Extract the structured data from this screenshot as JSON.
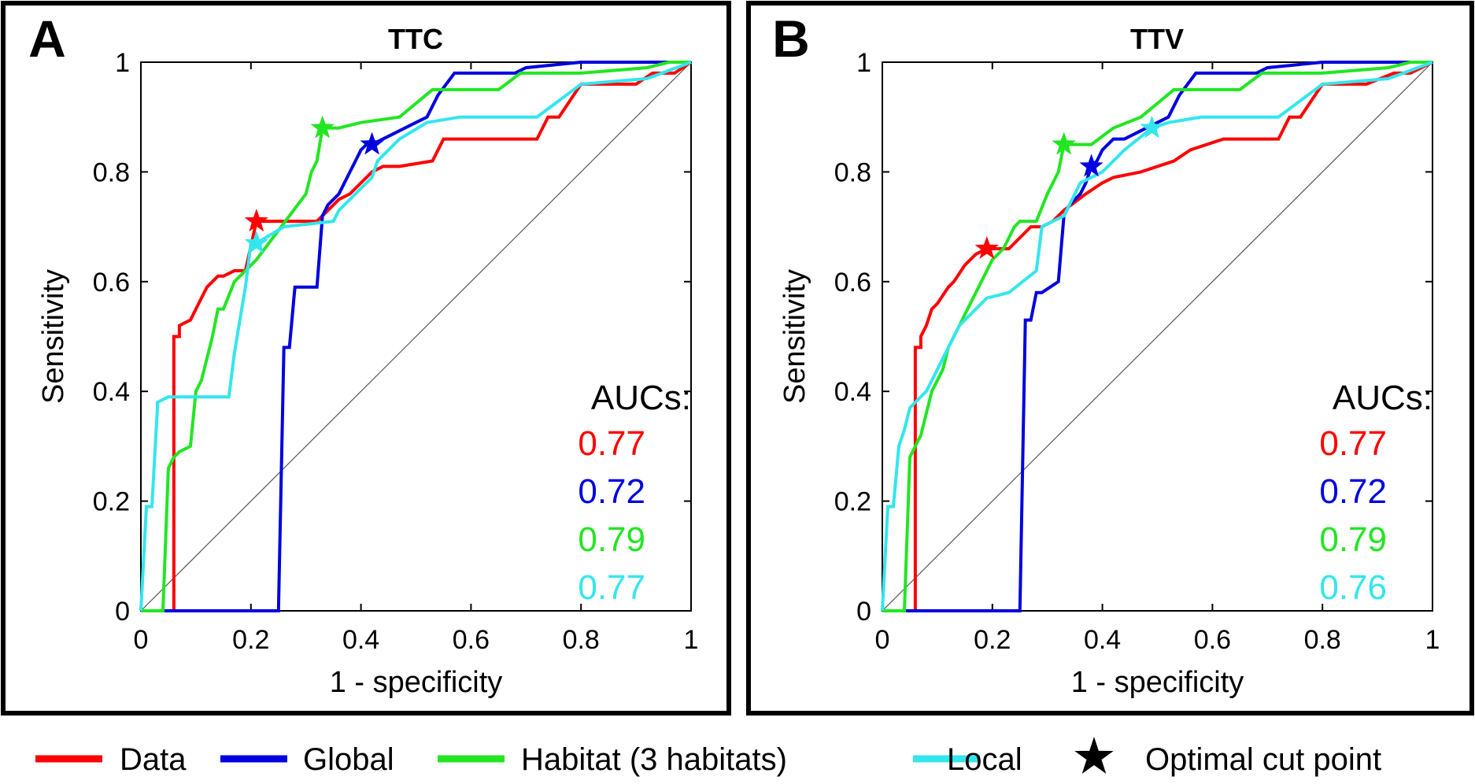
{
  "colors": {
    "data": "#ff0000",
    "global": "#0000e0",
    "habitat": "#22e622",
    "local": "#33e6ee",
    "diagonal": "#555555",
    "frame": "#000000"
  },
  "chart_data": [
    {
      "type": "line",
      "panel_label": "A",
      "title": "TTC",
      "xlabel": "1 - specificity",
      "ylabel": "Sensitivity",
      "xlim": [
        0,
        1
      ],
      "ylim": [
        0,
        1
      ],
      "xticks": [
        "0",
        "0.2",
        "0.4",
        "0.6",
        "0.8",
        "1"
      ],
      "yticks": [
        "0",
        "0.2",
        "0.4",
        "0.6",
        "0.8",
        "1"
      ],
      "auc_heading": "AUCs:",
      "series": [
        {
          "name": "Data",
          "key": "data",
          "auc": "0.77",
          "cut_point": [
            0.21,
            0.71
          ],
          "x": [
            0,
            0.06,
            0.06,
            0.07,
            0.07,
            0.09,
            0.1,
            0.11,
            0.12,
            0.13,
            0.14,
            0.15,
            0.17,
            0.19,
            0.21,
            0.25,
            0.32,
            0.34,
            0.36,
            0.38,
            0.4,
            0.42,
            0.44,
            0.47,
            0.53,
            0.55,
            0.6,
            0.68,
            0.72,
            0.74,
            0.76,
            0.8,
            0.84,
            0.9,
            0.93,
            0.97,
            1
          ],
          "y": [
            0,
            0,
            0.5,
            0.5,
            0.52,
            0.53,
            0.55,
            0.57,
            0.59,
            0.6,
            0.61,
            0.61,
            0.62,
            0.62,
            0.71,
            0.71,
            0.71,
            0.73,
            0.75,
            0.76,
            0.78,
            0.8,
            0.81,
            0.81,
            0.82,
            0.86,
            0.86,
            0.86,
            0.86,
            0.9,
            0.9,
            0.96,
            0.96,
            0.96,
            0.98,
            0.98,
            1
          ]
        },
        {
          "name": "Global",
          "key": "global",
          "auc": "0.72",
          "cut_point": [
            0.42,
            0.85
          ],
          "x": [
            0,
            0.25,
            0.26,
            0.27,
            0.28,
            0.29,
            0.32,
            0.33,
            0.34,
            0.36,
            0.37,
            0.38,
            0.39,
            0.4,
            0.41,
            0.42,
            0.44,
            0.48,
            0.52,
            0.54,
            0.57,
            0.68,
            0.7,
            0.8,
            0.94,
            1
          ],
          "y": [
            0,
            0,
            0.48,
            0.48,
            0.59,
            0.59,
            0.59,
            0.72,
            0.74,
            0.76,
            0.78,
            0.8,
            0.82,
            0.84,
            0.85,
            0.85,
            0.86,
            0.88,
            0.9,
            0.94,
            0.98,
            0.98,
            0.99,
            1,
            1,
            1
          ]
        },
        {
          "name": "Habitat (3 habitats)",
          "key": "habitat",
          "auc": "0.79",
          "cut_point": [
            0.33,
            0.88
          ],
          "x": [
            0,
            0.04,
            0.05,
            0.06,
            0.07,
            0.09,
            0.1,
            0.11,
            0.12,
            0.13,
            0.14,
            0.15,
            0.17,
            0.19,
            0.21,
            0.24,
            0.27,
            0.3,
            0.31,
            0.32,
            0.33,
            0.36,
            0.4,
            0.47,
            0.53,
            0.65,
            0.69,
            0.8,
            0.92,
            0.96,
            1
          ],
          "y": [
            0,
            0,
            0.26,
            0.28,
            0.29,
            0.3,
            0.4,
            0.42,
            0.46,
            0.5,
            0.55,
            0.55,
            0.6,
            0.62,
            0.64,
            0.68,
            0.72,
            0.76,
            0.8,
            0.82,
            0.88,
            0.88,
            0.89,
            0.9,
            0.95,
            0.95,
            0.98,
            0.98,
            0.99,
            1,
            1
          ]
        },
        {
          "name": "Local",
          "key": "local",
          "auc": "0.77",
          "cut_point": [
            0.21,
            0.67
          ],
          "x": [
            0,
            0.01,
            0.02,
            0.03,
            0.03,
            0.05,
            0.11,
            0.16,
            0.17,
            0.18,
            0.19,
            0.2,
            0.21,
            0.26,
            0.35,
            0.36,
            0.39,
            0.42,
            0.43,
            0.47,
            0.52,
            0.58,
            0.72,
            0.8,
            0.92,
            1
          ],
          "y": [
            0,
            0.19,
            0.19,
            0.37,
            0.38,
            0.39,
            0.39,
            0.39,
            0.47,
            0.53,
            0.59,
            0.67,
            0.67,
            0.7,
            0.71,
            0.73,
            0.76,
            0.79,
            0.82,
            0.86,
            0.89,
            0.9,
            0.9,
            0.96,
            0.97,
            1
          ]
        }
      ]
    },
    {
      "type": "line",
      "panel_label": "B",
      "title": "TTV",
      "xlabel": "1 - specificity",
      "ylabel": "Sensitivity",
      "xlim": [
        0,
        1
      ],
      "ylim": [
        0,
        1
      ],
      "xticks": [
        "0",
        "0.2",
        "0.4",
        "0.6",
        "0.8",
        "1"
      ],
      "yticks": [
        "0",
        "0.2",
        "0.4",
        "0.6",
        "0.8",
        "1"
      ],
      "auc_heading": "AUCs:",
      "series": [
        {
          "name": "Data",
          "key": "data",
          "auc": "0.77",
          "cut_point": [
            0.19,
            0.66
          ],
          "x": [
            0,
            0.06,
            0.06,
            0.07,
            0.07,
            0.08,
            0.09,
            0.1,
            0.12,
            0.13,
            0.15,
            0.17,
            0.19,
            0.23,
            0.25,
            0.27,
            0.29,
            0.31,
            0.33,
            0.37,
            0.4,
            0.42,
            0.47,
            0.53,
            0.56,
            0.62,
            0.68,
            0.72,
            0.74,
            0.76,
            0.8,
            0.88,
            0.93,
            0.96,
            1
          ],
          "y": [
            0,
            0,
            0.48,
            0.48,
            0.5,
            0.52,
            0.55,
            0.56,
            0.59,
            0.6,
            0.63,
            0.65,
            0.66,
            0.66,
            0.68,
            0.7,
            0.7,
            0.71,
            0.73,
            0.76,
            0.78,
            0.79,
            0.8,
            0.82,
            0.84,
            0.86,
            0.86,
            0.86,
            0.9,
            0.9,
            0.96,
            0.96,
            0.98,
            0.98,
            1
          ]
        },
        {
          "name": "Global",
          "key": "global",
          "auc": "0.72",
          "cut_point": [
            0.38,
            0.81
          ],
          "x": [
            0,
            0.25,
            0.26,
            0.27,
            0.28,
            0.29,
            0.32,
            0.33,
            0.34,
            0.36,
            0.37,
            0.38,
            0.39,
            0.4,
            0.42,
            0.44,
            0.48,
            0.52,
            0.54,
            0.57,
            0.68,
            0.7,
            0.8,
            0.94,
            1
          ],
          "y": [
            0,
            0,
            0.53,
            0.53,
            0.58,
            0.58,
            0.6,
            0.72,
            0.74,
            0.76,
            0.78,
            0.81,
            0.82,
            0.84,
            0.86,
            0.86,
            0.88,
            0.9,
            0.94,
            0.98,
            0.98,
            0.99,
            1,
            1,
            1
          ]
        },
        {
          "name": "Habitat (3 habitats)",
          "key": "habitat",
          "auc": "0.79",
          "cut_point": [
            0.33,
            0.85
          ],
          "x": [
            0,
            0.04,
            0.05,
            0.06,
            0.07,
            0.08,
            0.09,
            0.1,
            0.11,
            0.12,
            0.14,
            0.16,
            0.18,
            0.2,
            0.22,
            0.24,
            0.25,
            0.28,
            0.3,
            0.32,
            0.33,
            0.38,
            0.42,
            0.47,
            0.53,
            0.65,
            0.69,
            0.8,
            0.92,
            0.96,
            1
          ],
          "y": [
            0,
            0,
            0.28,
            0.3,
            0.32,
            0.36,
            0.4,
            0.42,
            0.44,
            0.48,
            0.52,
            0.56,
            0.6,
            0.64,
            0.66,
            0.7,
            0.71,
            0.71,
            0.76,
            0.8,
            0.85,
            0.85,
            0.88,
            0.9,
            0.95,
            0.95,
            0.98,
            0.98,
            0.99,
            1,
            1
          ]
        },
        {
          "name": "Local",
          "key": "local",
          "auc": "0.76",
          "cut_point": [
            0.49,
            0.88
          ],
          "x": [
            0,
            0.01,
            0.02,
            0.03,
            0.04,
            0.05,
            0.06,
            0.08,
            0.1,
            0.12,
            0.14,
            0.17,
            0.19,
            0.23,
            0.28,
            0.29,
            0.33,
            0.36,
            0.4,
            0.44,
            0.49,
            0.52,
            0.58,
            0.72,
            0.8,
            0.92,
            1
          ],
          "y": [
            0,
            0.19,
            0.19,
            0.3,
            0.33,
            0.37,
            0.38,
            0.4,
            0.44,
            0.48,
            0.52,
            0.55,
            0.57,
            0.58,
            0.62,
            0.7,
            0.72,
            0.78,
            0.8,
            0.84,
            0.88,
            0.89,
            0.9,
            0.9,
            0.96,
            0.97,
            1
          ]
        }
      ]
    }
  ],
  "legend": {
    "items": [
      {
        "label": "Data",
        "key": "data"
      },
      {
        "label": "Global",
        "key": "global"
      },
      {
        "label": "Habitat (3 habitats)",
        "key": "habitat"
      },
      {
        "label": "Local",
        "key": "local"
      }
    ],
    "cut_point_label": "Optimal cut point"
  }
}
